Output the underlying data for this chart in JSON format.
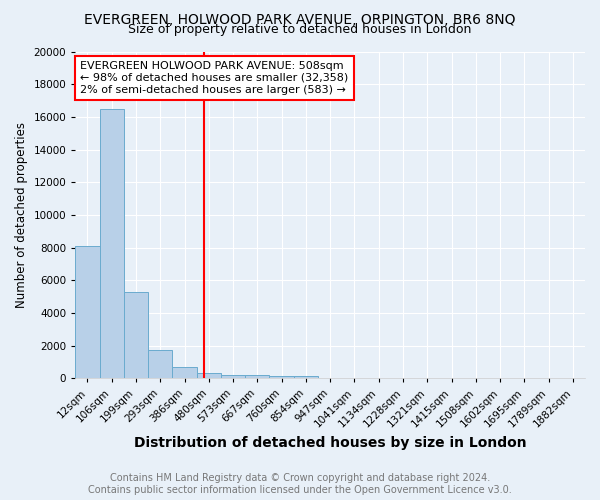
{
  "title": "EVERGREEN, HOLWOOD PARK AVENUE, ORPINGTON, BR6 8NQ",
  "subtitle": "Size of property relative to detached houses in London",
  "xlabel": "Distribution of detached houses by size in London",
  "ylabel": "Number of detached properties",
  "categories": [
    "12sqm",
    "106sqm",
    "199sqm",
    "293sqm",
    "386sqm",
    "480sqm",
    "573sqm",
    "667sqm",
    "760sqm",
    "854sqm",
    "947sqm",
    "1041sqm",
    "1134sqm",
    "1228sqm",
    "1321sqm",
    "1415sqm",
    "1508sqm",
    "1602sqm",
    "1695sqm",
    "1789sqm",
    "1882sqm"
  ],
  "values": [
    8100,
    16500,
    5300,
    1750,
    700,
    330,
    230,
    190,
    160,
    130,
    0,
    0,
    0,
    0,
    0,
    0,
    0,
    0,
    0,
    0,
    0
  ],
  "bar_color": "#b8d0e8",
  "bar_edge_color": "#6aabce",
  "vline_color": "red",
  "vline_pos": 5.3,
  "annotation_text": "EVERGREEN HOLWOOD PARK AVENUE: 508sqm\n← 98% of detached houses are smaller (32,358)\n2% of semi-detached houses are larger (583) →",
  "annotation_box_color": "white",
  "annotation_box_edge": "red",
  "ylim": [
    0,
    20000
  ],
  "yticks": [
    0,
    2000,
    4000,
    6000,
    8000,
    10000,
    12000,
    14000,
    16000,
    18000,
    20000
  ],
  "footer1": "Contains HM Land Registry data © Crown copyright and database right 2024.",
  "footer2": "Contains public sector information licensed under the Open Government Licence v3.0.",
  "bg_color": "#e8f0f8",
  "title_fontsize": 10,
  "subtitle_fontsize": 9,
  "xlabel_fontsize": 10,
  "ylabel_fontsize": 8.5,
  "tick_fontsize": 7.5,
  "footer_fontsize": 7,
  "annotation_fontsize": 8
}
